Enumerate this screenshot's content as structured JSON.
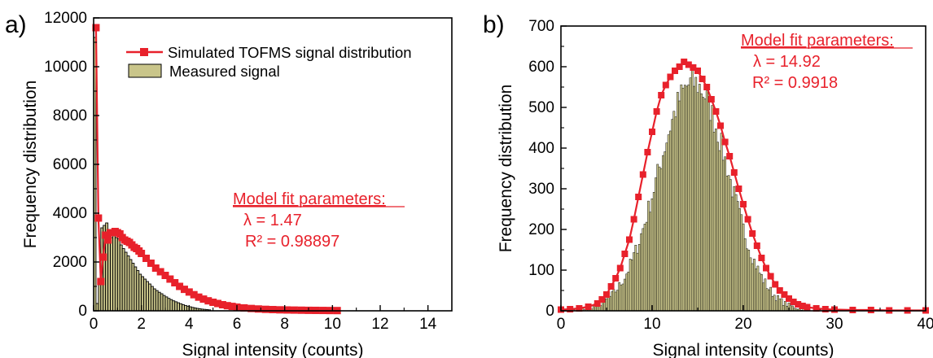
{
  "chart_data": [
    {
      "panel_label": "a)",
      "type": "bar",
      "xlabel": "Signal intensity (counts)",
      "ylabel": "Frequency distribution",
      "xlim": [
        0,
        15
      ],
      "ylim": [
        0,
        12000
      ],
      "xticks": [
        0,
        2,
        4,
        6,
        8,
        10,
        12,
        14
      ],
      "yticks": [
        0,
        2000,
        4000,
        6000,
        8000,
        10000,
        12000
      ],
      "grid": false,
      "legend": {
        "placement": "top-right",
        "entries": [
          {
            "label": "Simulated TOFMS signal distribution",
            "kind": "line-marker",
            "color": "#e8212b"
          },
          {
            "label": "Measured signal",
            "kind": "bar",
            "color": "#c9c58a"
          }
        ]
      },
      "annotation": {
        "title": "Model fit parameters:",
        "lambda": "λ = 1.47",
        "r2": "R² = 0.98897"
      },
      "bar_color": "#c9c58a",
      "line_color": "#e8212b",
      "series": [
        {
          "name": "Measured signal",
          "kind": "bars",
          "bin_width": 0.1,
          "x_start": 0.05,
          "values": [
            11200,
            300,
            1300,
            3400,
            3500,
            3600,
            3300,
            3000,
            3150,
            3000,
            2950,
            2700,
            2550,
            2400,
            2250,
            2100,
            1950,
            1800,
            1650,
            1500,
            1400,
            1300,
            1200,
            1100,
            1000,
            900,
            830,
            760,
            700,
            630,
            570,
            510,
            460,
            410,
            370,
            330,
            290,
            250,
            220,
            190,
            165,
            140,
            120,
            100,
            85,
            70,
            60,
            50,
            40
          ]
        },
        {
          "name": "Simulated TOFMS signal distribution",
          "kind": "line-markers",
          "x": [
            0.1,
            0.2,
            0.3,
            0.4,
            0.5,
            0.6,
            0.7,
            0.8,
            0.9,
            1.0,
            1.1,
            1.2,
            1.3,
            1.4,
            1.5,
            1.6,
            1.7,
            1.8,
            1.9,
            2.0,
            2.2,
            2.4,
            2.6,
            2.8,
            3.0,
            3.2,
            3.4,
            3.6,
            3.8,
            4.0,
            4.2,
            4.4,
            4.6,
            4.8,
            5.0,
            5.2,
            5.4,
            5.6,
            5.8,
            6.0,
            6.3,
            6.6,
            6.9,
            7.2,
            7.5,
            7.8,
            8.1,
            8.4,
            8.7,
            9.0,
            9.3,
            9.6,
            9.9,
            10.2
          ],
          "values": [
            11600,
            3800,
            1200,
            2200,
            3100,
            2900,
            3200,
            3200,
            3250,
            3200,
            3150,
            3000,
            2900,
            2850,
            2800,
            2700,
            2600,
            2550,
            2450,
            2350,
            2150,
            1950,
            1750,
            1600,
            1450,
            1300,
            1150,
            1000,
            880,
            770,
            660,
            560,
            480,
            410,
            350,
            300,
            250,
            210,
            180,
            150,
            120,
            95,
            75,
            60,
            50,
            40,
            35,
            30,
            25,
            20,
            18,
            15,
            12,
            10
          ]
        }
      ]
    },
    {
      "panel_label": "b)",
      "type": "bar",
      "xlabel": "Signal intensity (counts)",
      "ylabel": "Frequency distribution",
      "xlim": [
        0,
        40
      ],
      "ylim": [
        0,
        700
      ],
      "xticks": [
        0,
        10,
        20,
        30,
        40
      ],
      "yticks": [
        0,
        100,
        200,
        300,
        400,
        500,
        600,
        700
      ],
      "grid": false,
      "annotation": {
        "title": "Model fit parameters:",
        "lambda": "λ = 14.92",
        "r2": "R² = 0.9918"
      },
      "bar_color": "#c9c58a",
      "line_color": "#e8212b",
      "series": [
        {
          "name": "Measured signal",
          "kind": "gaussian-bars",
          "bin_width": 0.2,
          "center": 14.5,
          "sigma": 3.85,
          "peak": 560,
          "x_range": [
            0,
            38
          ]
        },
        {
          "name": "Simulated TOFMS signal distribution",
          "kind": "line-markers",
          "x": [
            0,
            1,
            2,
            3,
            4,
            4.5,
            5,
            5.5,
            6,
            6.5,
            7,
            7.5,
            8,
            8.5,
            9,
            9.5,
            10,
            10.5,
            11,
            11.5,
            12,
            12.5,
            13,
            13.5,
            14,
            14.5,
            15,
            15.5,
            16,
            16.5,
            17,
            17.5,
            18,
            18.5,
            19,
            19.5,
            20,
            20.5,
            21,
            21.5,
            22,
            22.5,
            23,
            23.5,
            24,
            24.5,
            25,
            25.5,
            26,
            26.5,
            27,
            28,
            29,
            30,
            32,
            34,
            36,
            38,
            40
          ],
          "values": [
            3,
            4,
            6,
            10,
            18,
            28,
            40,
            60,
            80,
            105,
            140,
            175,
            225,
            280,
            335,
            390,
            440,
            490,
            530,
            555,
            575,
            590,
            600,
            612,
            605,
            598,
            590,
            570,
            550,
            520,
            490,
            455,
            415,
            380,
            340,
            300,
            262,
            225,
            190,
            160,
            130,
            105,
            85,
            65,
            50,
            40,
            30,
            22,
            16,
            12,
            9,
            6,
            4,
            3,
            2,
            2,
            1,
            1,
            1
          ]
        }
      ]
    }
  ]
}
